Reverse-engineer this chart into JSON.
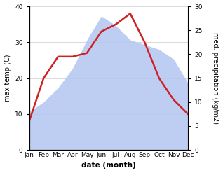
{
  "months": [
    "Jan",
    "Feb",
    "Mar",
    "Apr",
    "May",
    "Jun",
    "Jul",
    "Aug",
    "Sep",
    "Oct",
    "Nov",
    "Dec"
  ],
  "temperature": [
    8,
    20,
    26,
    26,
    27,
    33,
    35,
    38,
    30,
    20,
    14,
    10
  ],
  "precipitation": [
    8,
    10,
    13,
    17,
    23,
    28,
    26,
    23,
    22,
    21,
    19,
    14
  ],
  "temp_color": "#cc2222",
  "precip_color": "#b3c6f0",
  "left_ylim": [
    0,
    40
  ],
  "right_ylim": [
    0,
    30
  ],
  "left_ylabel": "max temp (C)",
  "right_ylabel": "med. precipitation (kg/m2)",
  "xlabel": "date (month)",
  "temp_linewidth": 1.8,
  "fig_width": 3.18,
  "fig_height": 2.47,
  "dpi": 100,
  "bg_color": "#f0f0f0"
}
